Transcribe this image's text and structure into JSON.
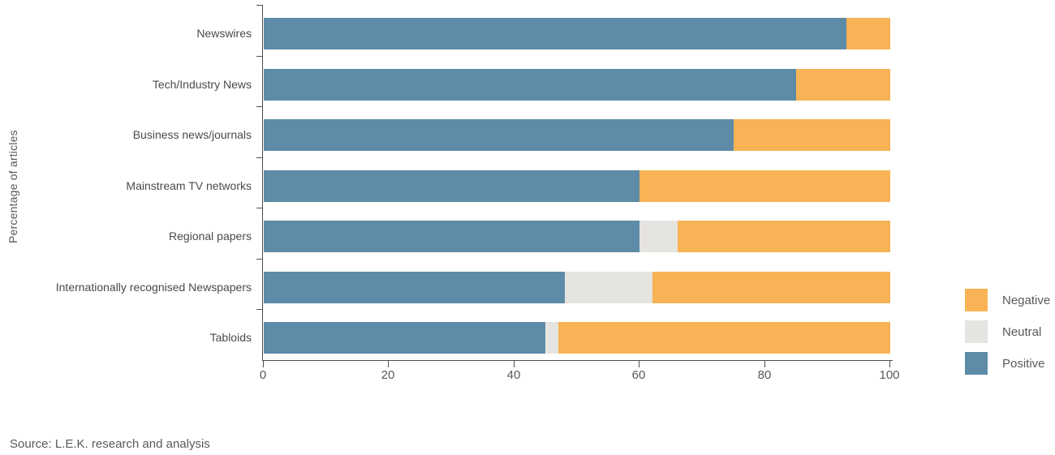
{
  "chart_data": {
    "type": "bar",
    "orientation": "horizontal-stacked",
    "title": "",
    "ylabel": "Percentage of articles",
    "xlabel": "",
    "xlim": [
      0,
      100
    ],
    "x_ticks": [
      0,
      20,
      40,
      60,
      80,
      100
    ],
    "grid": false,
    "legend_position": "right",
    "legend_order": [
      "Negative",
      "Neutral",
      "Positive"
    ],
    "categories": [
      "Newswires",
      "Tech/Industry News",
      "Business news/journals",
      "Mainstream TV networks",
      "Regional papers",
      "Internationally recognised Newspapers",
      "Tabloids"
    ],
    "series": [
      {
        "name": "Positive",
        "color": "#5e8ba7",
        "values": [
          93,
          85,
          75,
          60,
          60,
          48,
          45
        ]
      },
      {
        "name": "Neutral",
        "color": "#e5e4e1",
        "values": [
          0,
          0,
          0,
          0,
          6,
          14,
          2
        ]
      },
      {
        "name": "Negative",
        "color": "#f7b355",
        "values": [
          7,
          15,
          25,
          40,
          34,
          38,
          53
        ]
      }
    ]
  },
  "colors": {
    "axis": "#4f4f4f",
    "category_label": "#4a4a4a",
    "tick_label": "#595959"
  },
  "source_note": "Source: L.E.K. research and analysis"
}
